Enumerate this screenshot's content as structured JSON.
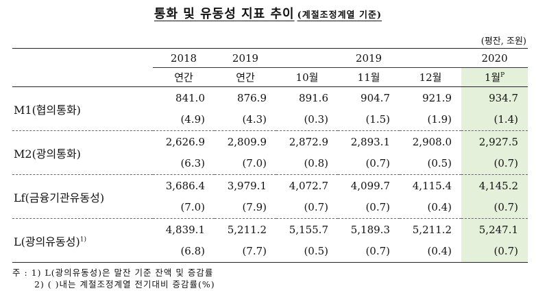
{
  "title": {
    "main": "통화 및 유동성 지표 추이",
    "sub": "(계절조정계열 기준)"
  },
  "unit": "(평잔, 조원)",
  "header": {
    "year_2018": "2018",
    "year_2019a": "2019",
    "year_2019b": "2019",
    "year_2020": "2020",
    "col1": "연간",
    "col2": "연간",
    "col3": "10월",
    "col4": "11월",
    "col5": "12월",
    "col6": "1월",
    "col6_sup": "P"
  },
  "rows": [
    {
      "label": "M1(협의통화)",
      "label_sup": "",
      "values": [
        "841.0",
        "876.9",
        "891.6",
        "904.7",
        "921.9",
        "934.7"
      ],
      "changes": [
        "(4.9)",
        "(4.3)",
        "(0.3)",
        "(1.5)",
        "(1.9)",
        "(1.4)"
      ]
    },
    {
      "label": "M2(광의통화)",
      "label_sup": "",
      "values": [
        "2,626.9",
        "2,809.9",
        "2,872.9",
        "2,893.1",
        "2,908.0",
        "2,927.5"
      ],
      "changes": [
        "(6.3)",
        "(7.0)",
        "(0.8)",
        "(0.7)",
        "(0.5)",
        "(0.7)"
      ]
    },
    {
      "label": "Lf(금융기관유동성)",
      "label_sup": "",
      "values": [
        "3,686.4",
        "3,979.1",
        "4,072.7",
        "4,099.7",
        "4,115.4",
        "4,145.2"
      ],
      "changes": [
        "(7.0)",
        "(7.9)",
        "(0.7)",
        "(0.7)",
        "(0.4)",
        "(0.7)"
      ]
    },
    {
      "label": "L(광의유동성)",
      "label_sup": "1)",
      "values": [
        "4,839.1",
        "5,211.2",
        "5,155.7",
        "5,189.3",
        "5,211.2",
        "5,247.1"
      ],
      "changes": [
        "(6.8)",
        "(7.7)",
        "(0.5)",
        "(0.7)",
        "(0.4)",
        "(0.7)"
      ]
    }
  ],
  "notes": {
    "line1": "주 : 1) L(광의유동성)은 말잔 기준 잔액 및 증감률",
    "line2": "2) (    )내는 계절조정계열 전기대비 증감률(%)"
  },
  "colors": {
    "highlight": "#e4f0d9",
    "rule": "#222222"
  }
}
